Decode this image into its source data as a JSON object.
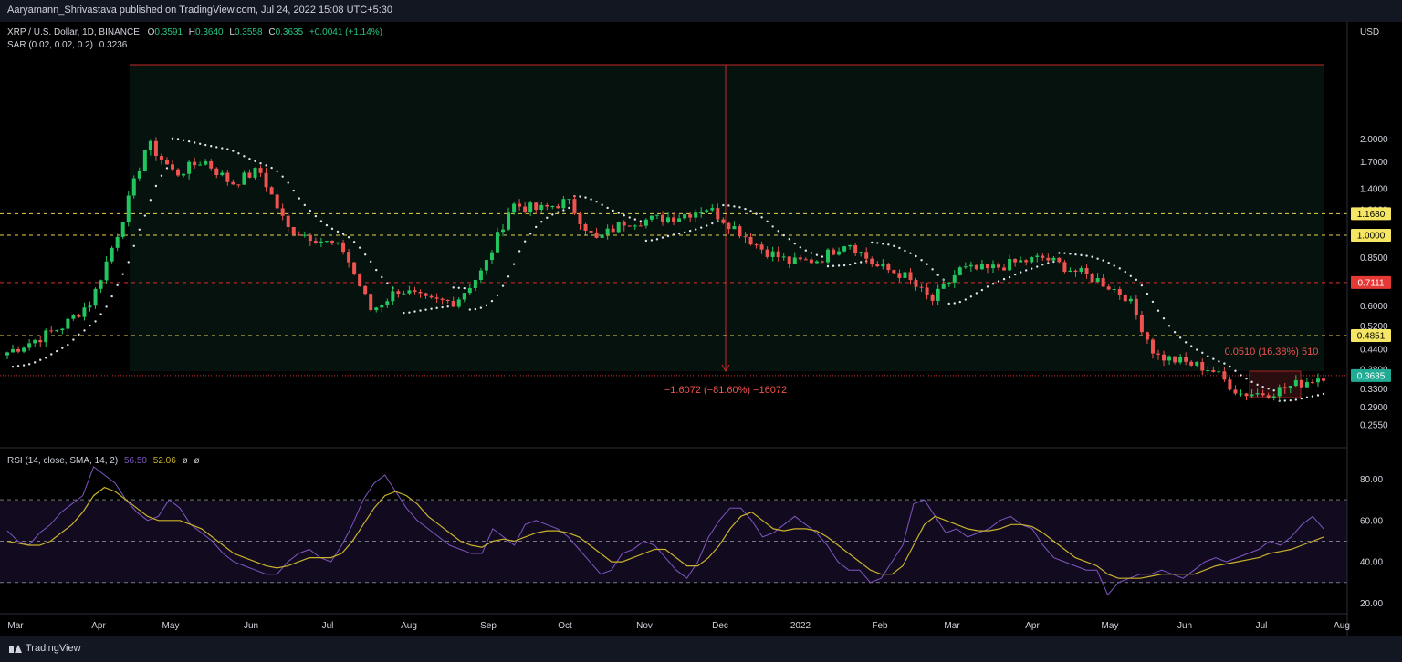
{
  "header": {
    "publisher_line": "Aaryamann_Shrivastava published on TradingView.com, Jul 24, 2022 15:08 UTC+5:30"
  },
  "legend": {
    "symbol": "XRP / U.S. Dollar, 1D, BINANCE",
    "o_label": "O",
    "o_value": "0.3591",
    "h_label": "H",
    "h_value": "0.3640",
    "l_label": "L",
    "l_value": "0.3558",
    "c_label": "C",
    "c_value": "0.3635",
    "change": "+0.0041 (+1.14%)",
    "sar_label": "SAR (0.02, 0.02, 0.2)",
    "sar_value": "0.3236",
    "rsi_label": "RSI (14, close, SMA, 14, 2)",
    "rsi_value": "56.50",
    "rsi_ma_value": "52.06",
    "rsi_extra1": "ø",
    "rsi_extra2": "ø"
  },
  "axis": {
    "currency": "USD",
    "price_ticks": [
      "2.0000",
      "1.7000",
      "1.4000",
      "1.2000",
      "1.0000",
      "0.8500",
      "0.6000",
      "0.5200",
      "0.4400",
      "0.3800",
      "0.3300",
      "0.2900",
      "0.2550"
    ],
    "rsi_ticks": [
      "80.00",
      "60.00",
      "40.00",
      "20.00"
    ],
    "time_ticks": [
      "Mar",
      "Apr",
      "May",
      "Jun",
      "Jul",
      "Aug",
      "Sep",
      "Oct",
      "Nov",
      "Dec",
      "2022",
      "Feb",
      "Mar",
      "Apr",
      "May",
      "Jun",
      "Jul",
      "Aug"
    ]
  },
  "levels": [
    {
      "value": "1.1680",
      "style": "yellow"
    },
    {
      "value": "1.0000",
      "style": "yellow"
    },
    {
      "value": "0.7111",
      "style": "red"
    },
    {
      "value": "0.4851",
      "style": "yellow"
    },
    {
      "value": "0.3635",
      "style": "green"
    }
  ],
  "annotations": {
    "big_range": "−1.6072 (−81.60%) −16072",
    "small_range": "0.0510 (16.38%) 510"
  },
  "brand": "TradingView",
  "colors": {
    "up": "#26a69a",
    "down": "#ef5350",
    "up_bright": "#22c55e",
    "rsi": "#7e57c2",
    "rsi_ma": "#c9b22c",
    "level_yellow": "#e8d44d",
    "level_red": "#d32f2f",
    "last_price": "#22ab94"
  },
  "chart_data": [
    {
      "type": "line",
      "title": "XRP / U.S. Dollar, 1D, BINANCE",
      "series": [
        {
          "x": [
            "Mar",
            "Mar",
            "Apr",
            "Apr",
            "Apr",
            "Apr",
            "May",
            "May",
            "May",
            "May",
            "Jun",
            "Jun",
            "Jun",
            "Jul",
            "Jul",
            "Jul",
            "Aug",
            "Aug",
            "Aug",
            "Sep",
            "Sep",
            "Oct",
            "Oct",
            "Oct",
            "Nov",
            "Nov",
            "Nov",
            "Dec",
            "Dec",
            "Dec",
            "2022",
            "2022",
            "2022",
            "Feb",
            "Feb",
            "Mar",
            "Mar",
            "Apr",
            "Apr",
            "May",
            "May",
            "May",
            "Jun",
            "Jun",
            "Jun",
            "Jul",
            "Jul",
            "Jul"
          ],
          "values": [
            0.43,
            0.47,
            0.52,
            0.62,
            1.05,
            1.95,
            1.55,
            1.72,
            1.45,
            1.6,
            1.05,
            0.98,
            0.9,
            0.58,
            0.68,
            0.62,
            0.62,
            0.78,
            1.25,
            1.2,
            1.28,
            0.96,
            1.1,
            1.12,
            1.15,
            1.22,
            1.05,
            0.9,
            0.82,
            0.84,
            0.96,
            0.8,
            0.75,
            0.62,
            0.78,
            0.78,
            0.82,
            0.85,
            0.78,
            0.72,
            0.64,
            0.42,
            0.4,
            0.38,
            0.32,
            0.32,
            0.34,
            0.3635
          ]
        }
      ],
      "ylim": [
        0.23,
        2.3
      ],
      "scale": "log",
      "grid": false
    },
    {
      "type": "line",
      "title": "RSI (14, close, SMA, 14, 2)",
      "series": [
        {
          "values": [
            55,
            50,
            48,
            54,
            58,
            64,
            68,
            72,
            86,
            82,
            78,
            70,
            64,
            60,
            62,
            70,
            66,
            58,
            54,
            50,
            44,
            40,
            38,
            36,
            34,
            34,
            40,
            44,
            46,
            42,
            40,
            48,
            58,
            70,
            78,
            82,
            74,
            66,
            60,
            56,
            52,
            48,
            46,
            44,
            44,
            56,
            52,
            48,
            58,
            60,
            58,
            56,
            52,
            46,
            40,
            34,
            36,
            44,
            46,
            50,
            48,
            42,
            36,
            32,
            40,
            52,
            60,
            66,
            66,
            60,
            52,
            54,
            58,
            62,
            58,
            54,
            48,
            40,
            36,
            36,
            30,
            32,
            40,
            48,
            68,
            70,
            62,
            54,
            56,
            52,
            54,
            56,
            60,
            62,
            58,
            56,
            48,
            42,
            40,
            38,
            36,
            36,
            24,
            30,
            32,
            34,
            34,
            36,
            34,
            32,
            36,
            40,
            42,
            40,
            42,
            44,
            46,
            50,
            48,
            52,
            58,
            62,
            56
          ]
        },
        {
          "values": [
            50,
            49,
            48,
            48,
            50,
            54,
            58,
            64,
            72,
            76,
            74,
            70,
            66,
            62,
            60,
            60,
            60,
            58,
            56,
            52,
            48,
            44,
            42,
            40,
            38,
            37,
            38,
            40,
            42,
            42,
            42,
            44,
            50,
            58,
            66,
            72,
            74,
            72,
            68,
            62,
            58,
            54,
            50,
            48,
            47,
            50,
            51,
            50,
            52,
            54,
            55,
            55,
            54,
            52,
            48,
            44,
            40,
            40,
            42,
            44,
            46,
            46,
            42,
            38,
            38,
            42,
            48,
            56,
            62,
            64,
            60,
            56,
            55,
            56,
            56,
            55,
            52,
            48,
            44,
            40,
            36,
            34,
            34,
            38,
            48,
            58,
            62,
            60,
            58,
            56,
            55,
            55,
            56,
            58,
            58,
            57,
            54,
            50,
            46,
            42,
            40,
            38,
            34,
            32,
            32,
            32,
            33,
            34,
            34,
            34,
            34,
            36,
            38,
            39,
            40,
            41,
            42,
            44,
            45,
            46,
            48,
            50,
            52
          ]
        }
      ],
      "ylim": [
        14,
        94
      ],
      "levels": [
        70,
        50,
        30
      ]
    }
  ]
}
